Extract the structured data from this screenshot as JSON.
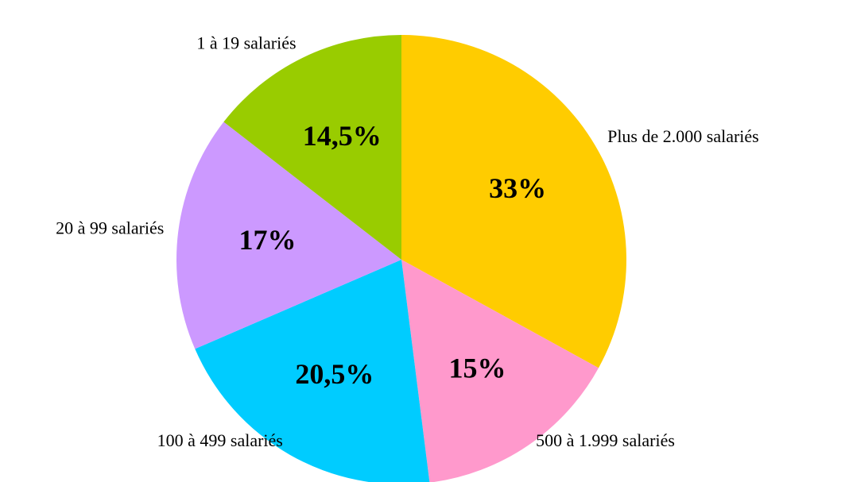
{
  "chart_data": {
    "type": "pie",
    "categories": [
      "Plus de 2.000 salariés",
      "500 à 1.999 salariés",
      "100 à 499 salariés",
      "20 à 99 salariés",
      "1 à 19 salariés"
    ],
    "values": [
      33,
      15,
      20.5,
      17,
      14.5
    ],
    "value_labels": [
      "33%",
      "15%",
      "20,5%",
      "17%",
      "14,5%"
    ],
    "colors": [
      "#ffcc00",
      "#ff99cc",
      "#00ccff",
      "#cc99ff",
      "#99cc00"
    ]
  }
}
